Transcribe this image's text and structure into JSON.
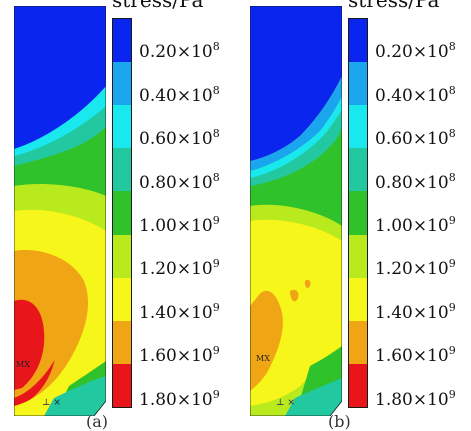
{
  "colors": {
    "levels": [
      "#0a26ee",
      "#1aa6ee",
      "#19e8ee",
      "#22c8a0",
      "#2fc22a",
      "#b8ea1e",
      "#f6f61a",
      "#f0a614",
      "#e8161a"
    ]
  },
  "panels": [
    {
      "id": "a",
      "title": "stress/Pa",
      "caption": "(a)",
      "legend": [
        {
          "mantissa": "0.20",
          "times": "×",
          "base": "10",
          "exp": "8"
        },
        {
          "mantissa": "0.40",
          "times": "×",
          "base": "10",
          "exp": "8"
        },
        {
          "mantissa": "0.60",
          "times": "×",
          "base": "10",
          "exp": "8"
        },
        {
          "mantissa": "0.80",
          "times": "×",
          "base": "10",
          "exp": "8"
        },
        {
          "mantissa": "1.00",
          "times": "×",
          "base": "10",
          "exp": "9"
        },
        {
          "mantissa": "1.20",
          "times": "×",
          "base": "10",
          "exp": "9"
        },
        {
          "mantissa": "1.40",
          "times": "×",
          "base": "10",
          "exp": "9"
        },
        {
          "mantissa": "1.60",
          "times": "×",
          "base": "10",
          "exp": "9"
        },
        {
          "mantissa": "1.80",
          "times": "×",
          "base": "10",
          "exp": "9"
        }
      ],
      "marker": "MX"
    },
    {
      "id": "b",
      "title": "stress/Pa",
      "caption": "(b)",
      "legend": [
        {
          "mantissa": "0.20",
          "times": "×",
          "base": "10",
          "exp": "8"
        },
        {
          "mantissa": "0.40",
          "times": "×",
          "base": "10",
          "exp": "8"
        },
        {
          "mantissa": "0.60",
          "times": "×",
          "base": "10",
          "exp": "8"
        },
        {
          "mantissa": "0.80",
          "times": "×",
          "base": "10",
          "exp": "8"
        },
        {
          "mantissa": "1.00",
          "times": "×",
          "base": "10",
          "exp": "9"
        },
        {
          "mantissa": "1.20",
          "times": "×",
          "base": "10",
          "exp": "9"
        },
        {
          "mantissa": "1.40",
          "times": "×",
          "base": "10",
          "exp": "9"
        },
        {
          "mantissa": "1.60",
          "times": "×",
          "base": "10",
          "exp": "9"
        },
        {
          "mantissa": "1.80",
          "times": "×",
          "base": "10",
          "exp": "9"
        }
      ],
      "marker": "MX"
    }
  ]
}
